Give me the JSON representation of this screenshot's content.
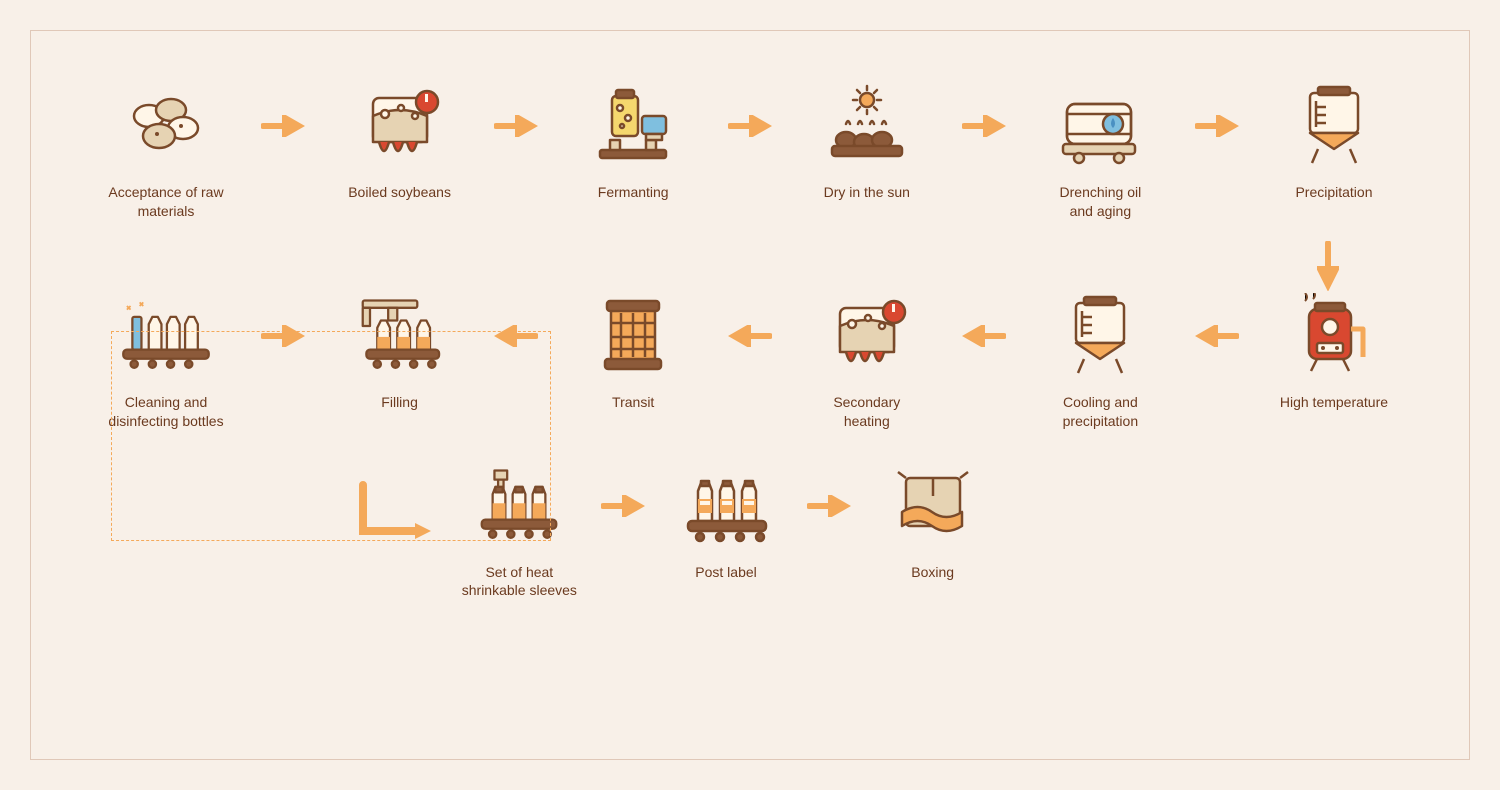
{
  "type": "flowchart",
  "background_color": "#f8f0e8",
  "frame_border_color": "#e0c8b8",
  "label_color": "#6b3a1f",
  "label_fontsize": 14,
  "arrow_color": "#f4a95a",
  "dashed_box_color": "#f4a95a",
  "palette": {
    "stroke": "#7a4a2a",
    "orange": "#f4a95a",
    "orange_dark": "#e08a2a",
    "red": "#d94830",
    "cream": "#fff6e8",
    "tan": "#e6d3b3",
    "brown": "#8c5a3a",
    "blue": "#7fbfdf",
    "blue_deep": "#4a90c2",
    "yellow": "#f5d76e"
  },
  "steps_row1": [
    {
      "id": "raw-materials",
      "label": "Acceptance of raw\nmaterials"
    },
    {
      "id": "boiled-soybeans",
      "label": "Boiled soybeans"
    },
    {
      "id": "fermenting",
      "label": "Fermanting"
    },
    {
      "id": "dry-sun",
      "label": "Dry in the sun"
    },
    {
      "id": "drenching-oil",
      "label": "Drenching oil\nand aging"
    },
    {
      "id": "precipitation",
      "label": "Precipitation"
    }
  ],
  "steps_row2": [
    {
      "id": "cleaning-bottles",
      "label": "Cleaning and\ndisinfecting bottles"
    },
    {
      "id": "filling",
      "label": "Filling"
    },
    {
      "id": "transit",
      "label": "Transit"
    },
    {
      "id": "secondary-heating",
      "label": "Secondary\nheating"
    },
    {
      "id": "cooling-precip",
      "label": "Cooling and\nprecipitation"
    },
    {
      "id": "high-temperature",
      "label": "High temperature"
    }
  ],
  "steps_row3": [
    {
      "id": "heat-shrink",
      "label": "Set of heat\nshrinkable sleeves"
    },
    {
      "id": "post-label",
      "label": "Post label"
    },
    {
      "id": "boxing",
      "label": "Boxing"
    }
  ],
  "arrows": {
    "row1_dir": "right",
    "row2_dir": "left",
    "row3_dir": "right",
    "down_after_row1": true,
    "l_connector_row2_to_row3": true
  },
  "dashed_group": {
    "covers": [
      "cleaning-bottles",
      "filling"
    ]
  }
}
